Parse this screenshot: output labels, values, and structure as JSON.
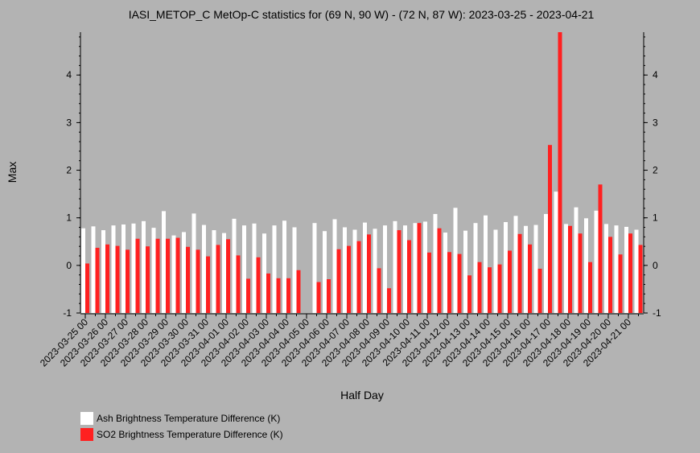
{
  "chart_data": {
    "type": "bar",
    "title": "IASI_METOP_C MetOp-C statistics for (69 N, 90 W) - (72 N, 87 W): 2023-03-25 - 2023-04-21",
    "xlabel": "Half Day",
    "ylabel": "Max",
    "ylim": [
      -1,
      4.9
    ],
    "yticks": [
      -1,
      0,
      1,
      2,
      3,
      4
    ],
    "grid": false,
    "legend_position": "bottom-left",
    "x_tick_labels": [
      "2023-03-25 00",
      "2023-03-26 00",
      "2023-03-27 00",
      "2023-03-28 00",
      "2023-03-29 00",
      "2023-03-30 00",
      "2023-03-31 00",
      "2023-04-01 00",
      "2023-04-02 00",
      "2023-04-03 00",
      "2023-04-04 00",
      "2023-04-05 00",
      "2023-04-06 00",
      "2023-04-07 00",
      "2023-04-08 00",
      "2023-04-09 00",
      "2023-04-10 00",
      "2023-04-11 00",
      "2023-04-12 00",
      "2023-04-13 00",
      "2023-04-14 00",
      "2023-04-15 00",
      "2023-04-16 00",
      "2023-04-17 00",
      "2023-04-18 00",
      "2023-04-19 00",
      "2023-04-20 00",
      "2023-04-21 00"
    ],
    "series": [
      {
        "name": "Ash Brightness Temperature Difference (K)",
        "color": "#ffffff",
        "values": [
          0.78,
          0.82,
          0.74,
          0.84,
          0.86,
          0.88,
          0.93,
          0.79,
          1.14,
          0.63,
          0.7,
          1.09,
          0.85,
          0.74,
          0.68,
          0.98,
          0.84,
          0.88,
          0.67,
          0.84,
          0.94,
          0.8,
          null,
          0.89,
          0.72,
          0.97,
          0.8,
          0.75,
          0.9,
          0.77,
          0.84,
          0.93,
          0.84,
          0.89,
          0.92,
          1.08,
          0.69,
          1.21,
          0.73,
          0.89,
          1.05,
          0.75,
          0.91,
          1.04,
          0.83,
          0.85,
          1.08,
          1.55,
          0.87,
          1.22,
          0.99,
          1.15,
          0.87,
          0.84,
          0.81,
          0.75
        ]
      },
      {
        "name": "SO2 Brightness Temperature Difference (K)",
        "color": "#ff2020",
        "values": [
          0.04,
          0.37,
          0.44,
          0.41,
          0.33,
          0.56,
          0.4,
          0.56,
          0.56,
          0.58,
          0.39,
          0.33,
          0.19,
          0.43,
          0.55,
          0.21,
          -0.28,
          0.17,
          -0.17,
          -0.27,
          -0.27,
          -0.1,
          null,
          -0.35,
          -0.29,
          0.34,
          0.41,
          0.51,
          0.65,
          -0.06,
          -0.48,
          0.74,
          0.53,
          0.89,
          0.27,
          0.78,
          0.28,
          0.24,
          -0.21,
          0.07,
          -0.04,
          0.02,
          0.31,
          0.66,
          0.44,
          -0.07,
          2.53,
          4.9,
          0.83,
          0.67,
          0.07,
          1.7,
          0.6,
          0.23,
          0.67,
          0.43
        ]
      }
    ]
  }
}
